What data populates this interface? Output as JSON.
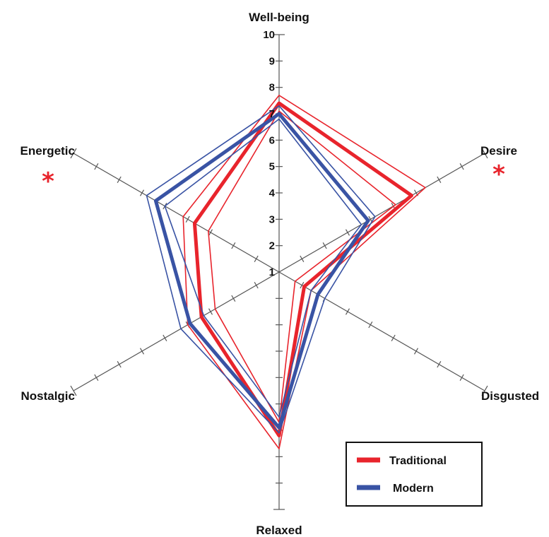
{
  "chart_data": {
    "type": "radar",
    "axes": [
      "Well-being",
      "Desire",
      "Disgusted",
      "Relaxed",
      "Nostalgic",
      "Energetic"
    ],
    "scale": {
      "min": 1,
      "max": 10,
      "ticks": [
        "1",
        "2",
        "3",
        "4",
        "5",
        "6",
        "7",
        "8",
        "9",
        "10"
      ]
    },
    "significance_marks": [
      {
        "axis": "Energetic",
        "symbol": "*"
      },
      {
        "axis": "Desire",
        "symbol": "*"
      }
    ],
    "series": [
      {
        "name": "Traditional",
        "color": "#e8242c",
        "values": [
          7.4,
          6.8,
          2.1,
          7.2,
          4.4,
          4.7
        ],
        "interval_upper": [
          7.7,
          7.4,
          2.4,
          7.7,
          5.0,
          5.2
        ],
        "interval_lower": [
          7.1,
          6.1,
          1.7,
          6.7,
          3.8,
          4.1
        ]
      },
      {
        "name": "Modern",
        "color": "#3953a4",
        "values": [
          7.0,
          4.9,
          2.7,
          6.9,
          4.9,
          6.4
        ],
        "interval_upper": [
          7.3,
          5.2,
          3.0,
          7.1,
          5.3,
          6.8
        ],
        "interval_lower": [
          6.8,
          4.6,
          2.4,
          6.5,
          4.3,
          6.0
        ]
      }
    ],
    "legend": {
      "position": "bottom-right",
      "entries": [
        "Traditional",
        "Modern"
      ]
    },
    "grid": false
  }
}
